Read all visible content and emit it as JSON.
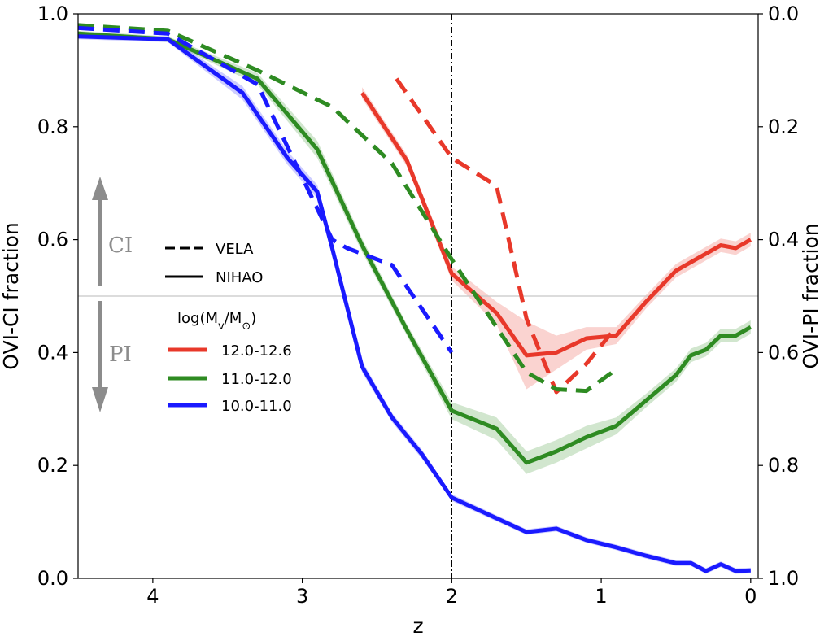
{
  "chart_data": {
    "type": "line",
    "xlabel": "z",
    "ylabel": "OVI-CI fraction",
    "ylabel_right": "OVI-PI fraction",
    "xlim": [
      4.5,
      -0.05
    ],
    "ylim": [
      0.0,
      1.0
    ],
    "x_ticks": [
      4,
      3,
      2,
      1,
      0
    ],
    "x_tick_labels": [
      "4",
      "3",
      "2",
      "1",
      "0"
    ],
    "y_ticks": [
      0.0,
      0.2,
      0.4,
      0.6,
      0.8,
      1.0
    ],
    "y_tick_labels": [
      "0.0",
      "0.2",
      "0.4",
      "0.6",
      "0.8",
      "1.0"
    ],
    "y_right_tick_labels": [
      "1.0",
      "0.8",
      "0.6",
      "0.4",
      "0.2",
      "0.0"
    ],
    "grid": false,
    "reference_lines": [
      {
        "orientation": "vertical",
        "x": 2,
        "style": "dashdot",
        "color": "#000000"
      },
      {
        "orientation": "horizontal",
        "y": 0.5,
        "style": "solid",
        "color": "#c8c8c8"
      }
    ],
    "annotations": [
      {
        "text": "CI",
        "direction": "up",
        "color": "#8c8c8c"
      },
      {
        "text": "PI",
        "direction": "down",
        "color": "#8c8c8c"
      }
    ],
    "legend": {
      "placement": "center-left",
      "style_entries": [
        {
          "label": "VELA",
          "linestyle": "dashed"
        },
        {
          "label": "NIHAO",
          "linestyle": "solid"
        }
      ],
      "mass_title": "log(M",
      "mass_title_sub": "v",
      "mass_title_mid": "/M",
      "mass_title_sub2": "⊙",
      "mass_title_end": ")",
      "mass_entries": [
        {
          "label": "12.0-12.6",
          "color": "#e8382a"
        },
        {
          "label": "11.0-12.0",
          "color": "#2e8b22"
        },
        {
          "label": "10.0-11.0",
          "color": "#1a1aff"
        }
      ]
    },
    "series": [
      {
        "name": "12.0-12.6",
        "simulation": "NIHAO",
        "linestyle": "solid",
        "color": "#e8382a",
        "x": [
          2.6,
          2.3,
          2.0,
          1.7,
          1.5,
          1.3,
          1.1,
          0.9,
          0.7,
          0.5,
          0.4,
          0.3,
          0.2,
          0.1,
          0.0
        ],
        "y": [
          0.86,
          0.74,
          0.54,
          0.47,
          0.395,
          0.4,
          0.425,
          0.43,
          0.49,
          0.545,
          0.56,
          0.575,
          0.59,
          0.585,
          0.6
        ],
        "band": [
          0.01,
          0.01,
          0.012,
          0.02,
          0.06,
          0.03,
          0.02,
          0.015,
          0.012,
          0.012,
          0.012,
          0.012,
          0.012,
          0.012,
          0.012
        ]
      },
      {
        "name": "11.0-12.0",
        "simulation": "NIHAO",
        "linestyle": "solid",
        "color": "#2e8b22",
        "x": [
          4.5,
          3.9,
          3.3,
          2.9,
          2.6,
          2.3,
          2.0,
          1.7,
          1.5,
          1.3,
          1.1,
          0.9,
          0.7,
          0.5,
          0.4,
          0.3,
          0.2,
          0.1,
          0.0
        ],
        "y": [
          0.965,
          0.955,
          0.885,
          0.76,
          0.59,
          0.44,
          0.297,
          0.265,
          0.205,
          0.225,
          0.25,
          0.27,
          0.315,
          0.36,
          0.395,
          0.405,
          0.43,
          0.43,
          0.445
        ],
        "band": [
          0.005,
          0.005,
          0.01,
          0.015,
          0.012,
          0.01,
          0.015,
          0.02,
          0.02,
          0.02,
          0.02,
          0.015,
          0.012,
          0.012,
          0.012,
          0.012,
          0.012,
          0.012,
          0.012
        ]
      },
      {
        "name": "10.0-11.0",
        "simulation": "NIHAO",
        "linestyle": "solid",
        "color": "#1a1aff",
        "x": [
          4.5,
          3.9,
          3.4,
          3.1,
          2.9,
          2.8,
          2.6,
          2.4,
          2.2,
          2.0,
          1.5,
          1.3,
          1.1,
          0.9,
          0.7,
          0.5,
          0.4,
          0.3,
          0.2,
          0.1,
          0.0
        ],
        "y": [
          0.96,
          0.955,
          0.86,
          0.745,
          0.685,
          0.585,
          0.375,
          0.285,
          0.22,
          0.143,
          0.082,
          0.088,
          0.068,
          0.055,
          0.04,
          0.027,
          0.027,
          0.013,
          0.025,
          0.013,
          0.014
        ],
        "band": [
          0.005,
          0.005,
          0.012,
          0.012,
          0.012,
          0.01,
          0.01,
          0.008,
          0.008,
          0.006,
          0.005,
          0.005,
          0.005,
          0.005,
          0.005,
          0.005,
          0.005,
          0.005,
          0.005,
          0.005,
          0.005
        ]
      },
      {
        "name": "12.0-12.6",
        "simulation": "VELA",
        "linestyle": "dashed",
        "color": "#e8382a",
        "x": [
          2.37,
          2.0,
          1.7,
          1.5,
          1.3,
          1.1,
          0.9
        ],
        "y": [
          0.885,
          0.745,
          0.695,
          0.46,
          0.33,
          0.38,
          0.445
        ]
      },
      {
        "name": "11.0-12.0",
        "simulation": "VELA",
        "linestyle": "dashed",
        "color": "#2e8b22",
        "x": [
          4.5,
          3.9,
          3.3,
          2.8,
          2.4,
          2.0,
          1.7,
          1.5,
          1.3,
          1.1,
          0.9
        ],
        "y": [
          0.98,
          0.97,
          0.9,
          0.835,
          0.735,
          0.565,
          0.445,
          0.365,
          0.335,
          0.332,
          0.37
        ]
      },
      {
        "name": "10.0-11.0",
        "simulation": "VELA",
        "linestyle": "dashed",
        "color": "#1a1aff",
        "x": [
          4.5,
          3.9,
          3.3,
          3.0,
          2.8,
          2.7,
          2.4,
          2.0
        ],
        "y": [
          0.975,
          0.965,
          0.875,
          0.71,
          0.6,
          0.585,
          0.555,
          0.4
        ]
      }
    ]
  }
}
